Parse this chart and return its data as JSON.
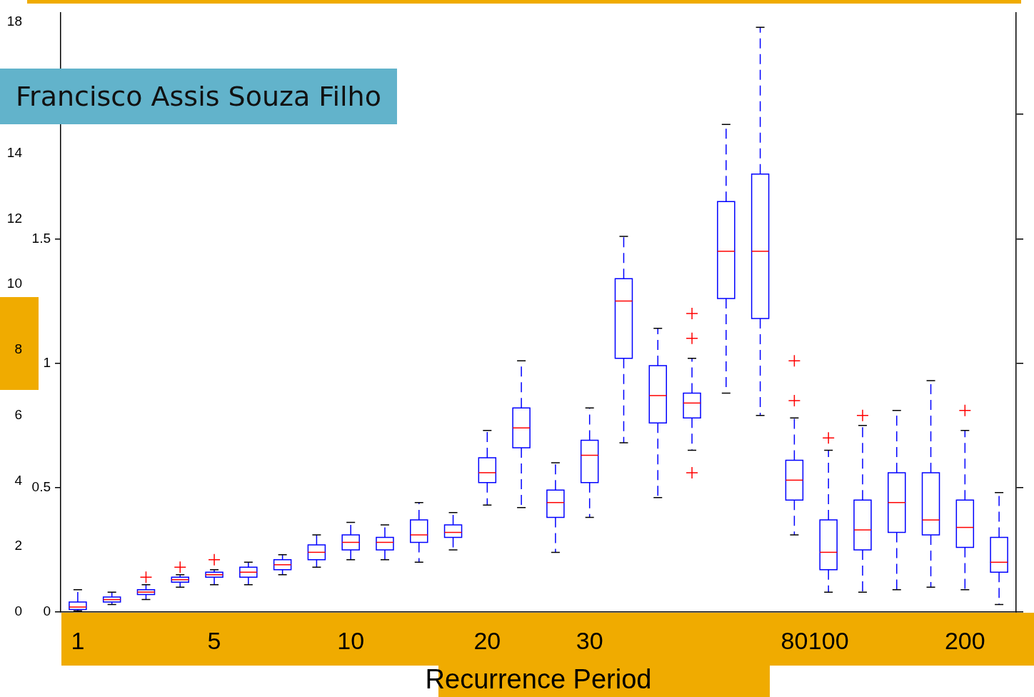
{
  "chart_data": {
    "type": "box",
    "xlabel": "Recurrence Period",
    "annotations": [
      "Francisco Assis Souza Filho"
    ],
    "categories": [
      "1",
      null,
      null,
      null,
      "5",
      null,
      null,
      null,
      "10",
      null,
      null,
      null,
      "20",
      null,
      null,
      "30",
      null,
      null,
      null,
      null,
      null,
      "80",
      "100",
      null,
      null,
      null,
      "200",
      null
    ],
    "series": [
      {
        "color": "#0000ff",
        "boxes": [
          {
            "low": 0.005,
            "q1": 0.01,
            "median": 0.02,
            "q3": 0.04,
            "high": 0.09
          },
          {
            "low": 0.03,
            "q1": 0.04,
            "median": 0.05,
            "q3": 0.06,
            "high": 0.08
          },
          {
            "low": 0.05,
            "q1": 0.07,
            "median": 0.08,
            "q3": 0.09,
            "high": 0.11,
            "outliers": [
              0.14
            ]
          },
          {
            "low": 0.1,
            "q1": 0.12,
            "median": 0.13,
            "q3": 0.14,
            "high": 0.15,
            "outliers": [
              0.18
            ]
          },
          {
            "low": 0.11,
            "q1": 0.14,
            "median": 0.15,
            "q3": 0.16,
            "high": 0.17,
            "outliers": [
              0.21
            ]
          },
          {
            "low": 0.11,
            "q1": 0.14,
            "median": 0.16,
            "q3": 0.18,
            "high": 0.2
          },
          {
            "low": 0.15,
            "q1": 0.17,
            "median": 0.19,
            "q3": 0.21,
            "high": 0.23
          },
          {
            "low": 0.18,
            "q1": 0.21,
            "median": 0.24,
            "q3": 0.27,
            "high": 0.31
          },
          {
            "low": 0.21,
            "q1": 0.25,
            "median": 0.28,
            "q3": 0.31,
            "high": 0.36
          },
          {
            "low": 0.21,
            "q1": 0.25,
            "median": 0.28,
            "q3": 0.3,
            "high": 0.35
          },
          {
            "low": 0.2,
            "q1": 0.28,
            "median": 0.31,
            "q3": 0.37,
            "high": 0.44
          },
          {
            "low": 0.25,
            "q1": 0.3,
            "median": 0.32,
            "q3": 0.35,
            "high": 0.4
          },
          {
            "low": 0.43,
            "q1": 0.52,
            "median": 0.56,
            "q3": 0.62,
            "high": 0.73
          },
          {
            "low": 0.42,
            "q1": 0.66,
            "median": 0.74,
            "q3": 0.82,
            "high": 1.01
          },
          {
            "low": 0.24,
            "q1": 0.38,
            "median": 0.44,
            "q3": 0.49,
            "high": 0.6
          },
          {
            "low": 0.38,
            "q1": 0.52,
            "median": 0.63,
            "q3": 0.69,
            "high": 0.82
          },
          {
            "low": 0.68,
            "q1": 1.02,
            "median": 1.25,
            "q3": 1.34,
            "high": 1.51
          },
          {
            "low": 0.46,
            "q1": 0.76,
            "median": 0.87,
            "q3": 0.99,
            "high": 1.14
          },
          {
            "low": 0.65,
            "q1": 0.78,
            "median": 0.84,
            "q3": 0.88,
            "high": 1.02,
            "outliers": [
              1.2,
              1.1,
              0.56
            ]
          },
          {
            "low": 0.88,
            "q1": 1.26,
            "median": 1.45,
            "q3": 1.65,
            "high": 1.96
          },
          {
            "low": 0.79,
            "q1": 1.18,
            "median": 1.45,
            "q3": 1.76,
            "high": 2.35
          },
          {
            "low": 0.31,
            "q1": 0.45,
            "median": 0.53,
            "q3": 0.61,
            "high": 0.78,
            "outliers": [
              1.01,
              0.85
            ]
          },
          {
            "low": 0.08,
            "q1": 0.17,
            "median": 0.24,
            "q3": 0.37,
            "high": 0.65,
            "outliers": [
              0.7
            ]
          },
          {
            "low": 0.08,
            "q1": 0.25,
            "median": 0.33,
            "q3": 0.45,
            "high": 0.75,
            "outliers": [
              0.79
            ]
          },
          {
            "low": 0.09,
            "q1": 0.32,
            "median": 0.44,
            "q3": 0.56,
            "high": 0.81
          },
          {
            "low": 0.1,
            "q1": 0.31,
            "median": 0.37,
            "q3": 0.56,
            "high": 0.93
          },
          {
            "low": 0.09,
            "q1": 0.26,
            "median": 0.34,
            "q3": 0.45,
            "high": 0.73,
            "outliers": [
              0.81
            ]
          },
          {
            "low": 0.03,
            "q1": 0.16,
            "median": 0.2,
            "q3": 0.3,
            "high": 0.48
          }
        ]
      }
    ],
    "ylim": [
      0,
      2.41
    ],
    "yticks": [
      0,
      0.5,
      1,
      1.5,
      {
        "value": 2,
        "label": null
      }
    ],
    "y2lim": [
      0,
      18.3
    ],
    "y2ticks": [
      0,
      2,
      4,
      6,
      8,
      10,
      12,
      14,
      18
    ],
    "marker": "cross",
    "line_style": "dashed",
    "grid": false
  }
}
